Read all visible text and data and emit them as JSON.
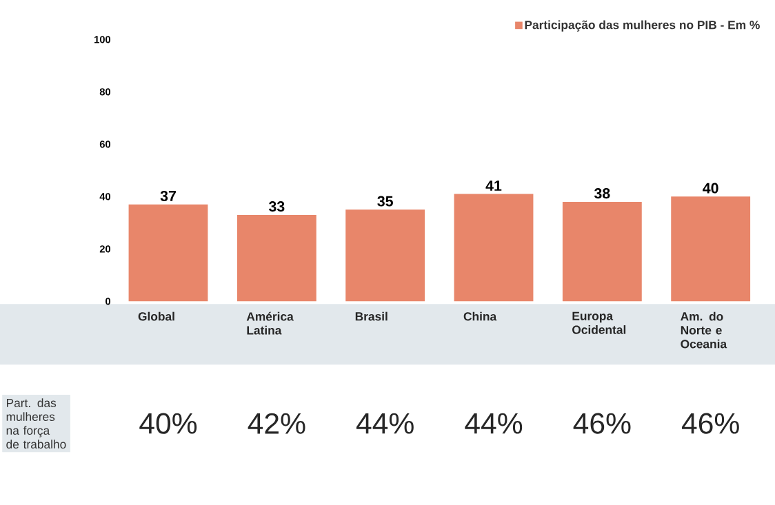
{
  "chart_data": [
    {
      "type": "bar",
      "categories": [
        "Global",
        "América Latina",
        "Brasil",
        "China",
        "Europa Ocidental",
        "Am. do Norte e Oceania"
      ],
      "series": [
        {
          "name": "Participação das mulheres no PIB - Em %",
          "color": "#e8866a",
          "values": [
            37,
            33,
            35,
            41,
            38,
            40
          ]
        }
      ],
      "ylim": [
        0,
        100
      ],
      "yticks": [
        0,
        20,
        40,
        60,
        80,
        100
      ],
      "data_labels": true,
      "legend": "top right"
    },
    {
      "type": "other",
      "title": "Part. das mulheres na força de trabalho",
      "value_labels": [
        "40%",
        "42%",
        "44%",
        "44%",
        "46%",
        "46%"
      ]
    }
  ]
}
